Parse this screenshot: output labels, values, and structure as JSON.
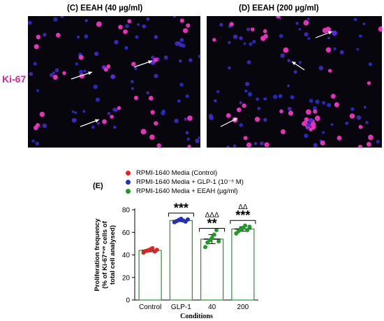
{
  "panels": [
    {
      "label": "(C)  EEAH (40 µg/ml)"
    },
    {
      "label": "(D)  EEAH (200 µg/ml)"
    }
  ],
  "row_label": "Ki-67",
  "figure_letter": "(E)",
  "legend": [
    {
      "label": "RPMI-1640 Media (Control)",
      "color": "#e02424"
    },
    {
      "label": "RPMI-1640 Media + GLP-1 (10⁻⁶ M)",
      "color": "#2330b8"
    },
    {
      "label": "RPMI-1640 Media + EEAH (µg/ml)",
      "color": "#1e9a2a"
    }
  ],
  "chart_data": {
    "type": "bar",
    "categories": [
      "Control",
      "GLP-1",
      "40",
      "200"
    ],
    "values": [
      44,
      70.5,
      54,
      63
    ],
    "errors": [
      1.2,
      1.0,
      4.0,
      2.0
    ],
    "points": [
      [
        42,
        43.5,
        44,
        45,
        46,
        43,
        44.5
      ],
      [
        69,
        70,
        71,
        72,
        70.5,
        69.5,
        71.5
      ],
      [
        47,
        51,
        53,
        55,
        58,
        62,
        52
      ],
      [
        59,
        61,
        63,
        64,
        66,
        62,
        65
      ]
    ],
    "point_colors": [
      "#e02424",
      "#2330b8",
      "#1e9a2a",
      "#1e9a2a"
    ],
    "bar_edge_color": "#1e9a2a",
    "xlabel": "Conditions",
    "ylabel_lines": [
      "Proliferation frequency",
      "(% of Ki-67⁺ᵛᵉ cells of",
      "total cell analysed)"
    ],
    "ylim": [
      0,
      80
    ],
    "yticks": [
      "0",
      "20",
      "40",
      "60",
      "80"
    ],
    "significance_stars": [
      "",
      "***",
      "**",
      "***"
    ],
    "significance_deltas": [
      "",
      "",
      "ΔΔΔ",
      "ΔΔ"
    ]
  }
}
